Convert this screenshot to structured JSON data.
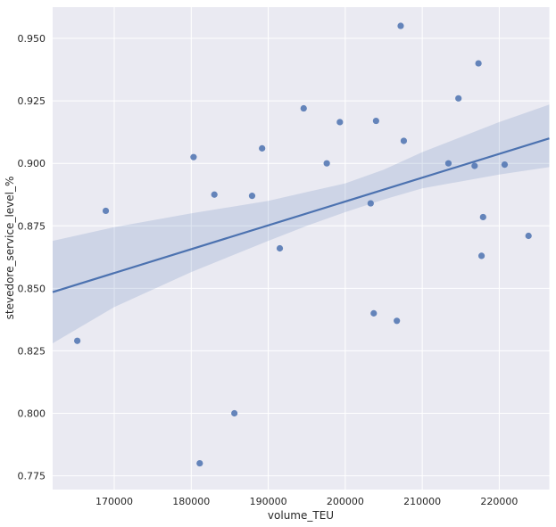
{
  "chart_data": {
    "type": "scatter",
    "title": "",
    "xlabel": "volume_TEU",
    "ylabel": "stevedore_service_level_%",
    "xlim": [
      162000,
      226500
    ],
    "ylim": [
      0.7695,
      0.9625
    ],
    "xticks": [
      170000,
      180000,
      190000,
      200000,
      210000,
      220000
    ],
    "xtick_labels": [
      "170000",
      "180000",
      "190000",
      "200000",
      "210000",
      "220000"
    ],
    "yticks": [
      0.775,
      0.8,
      0.825,
      0.85,
      0.875,
      0.9,
      0.925,
      0.95
    ],
    "ytick_labels": [
      "0.775",
      "0.800",
      "0.825",
      "0.850",
      "0.875",
      "0.900",
      "0.925",
      "0.950"
    ],
    "grid": true,
    "colors": {
      "background": "#eaeaf2",
      "grid": "#ffffff",
      "points": "#4c72b0",
      "regression_line": "#4c72b0",
      "confidence_band": "#4c72b0"
    },
    "points": [
      {
        "x": 165200,
        "y": 0.829
      },
      {
        "x": 168900,
        "y": 0.881
      },
      {
        "x": 180300,
        "y": 0.9025
      },
      {
        "x": 181100,
        "y": 0.78
      },
      {
        "x": 183000,
        "y": 0.8875
      },
      {
        "x": 185600,
        "y": 0.8
      },
      {
        "x": 187900,
        "y": 0.887
      },
      {
        "x": 189200,
        "y": 0.906
      },
      {
        "x": 191500,
        "y": 0.866
      },
      {
        "x": 194600,
        "y": 0.922
      },
      {
        "x": 197600,
        "y": 0.9
      },
      {
        "x": 199300,
        "y": 0.9165
      },
      {
        "x": 203300,
        "y": 0.884
      },
      {
        "x": 203700,
        "y": 0.84
      },
      {
        "x": 204000,
        "y": 0.917
      },
      {
        "x": 206700,
        "y": 0.837
      },
      {
        "x": 207200,
        "y": 0.955
      },
      {
        "x": 207600,
        "y": 0.909
      },
      {
        "x": 213400,
        "y": 0.9
      },
      {
        "x": 214700,
        "y": 0.926
      },
      {
        "x": 216800,
        "y": 0.899
      },
      {
        "x": 217300,
        "y": 0.94
      },
      {
        "x": 217700,
        "y": 0.863
      },
      {
        "x": 217900,
        "y": 0.8785
      },
      {
        "x": 220700,
        "y": 0.8995
      },
      {
        "x": 223800,
        "y": 0.871
      }
    ],
    "regression_line": {
      "x": [
        162000,
        226500
      ],
      "y": [
        0.8485,
        0.91
      ]
    },
    "confidence_band": {
      "x": [
        162000,
        170000,
        180000,
        190000,
        195000,
        200000,
        205000,
        210000,
        220000,
        226500
      ],
      "lower": [
        0.828,
        0.8425,
        0.8565,
        0.869,
        0.875,
        0.8805,
        0.8855,
        0.89,
        0.8955,
        0.8985
      ],
      "upper": [
        0.869,
        0.8745,
        0.88,
        0.885,
        0.8885,
        0.892,
        0.8975,
        0.9045,
        0.9165,
        0.9235
      ]
    }
  }
}
